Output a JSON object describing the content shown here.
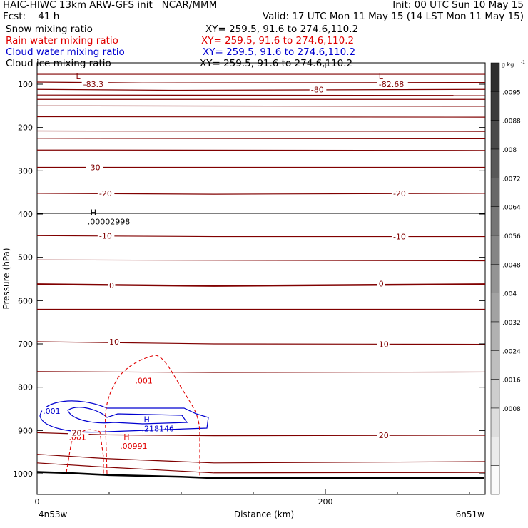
{
  "header": {
    "line1_left": "HAIC-HIWC 13km ARW-GFS init   NCAR/MMM",
    "line1_right": "Init: 00 UTC Sun 10 May 15",
    "line2_left": "Fcst:    41 h",
    "line2_right": "Valid: 17 UTC Mon 11 May 15 (14 LST Mon 11 May 15)"
  },
  "legend": [
    {
      "label": "Snow mixing ratio",
      "xy": "XY= 259.5, 91.6 to 274.6,110.2",
      "color": "#000000"
    },
    {
      "label": "Rain water mixing ratio",
      "xy": "XY= 259.5, 91.6 to 274.6,110.2",
      "color": "#e00000"
    },
    {
      "label": "Cloud water mixing ratio",
      "xy": "XY= 259.5, 91.6 to 274.6,110.2",
      "color": "#0000d0"
    },
    {
      "label": "Cloud ice mixing ratio",
      "xy": "XY= 259.5, 91.6 to 274.6,110.2",
      "color": "#000000"
    }
  ],
  "chart_data": {
    "type": "cross-section",
    "xlabel": "Distance (km)",
    "ylabel": "Pressure (hPa)",
    "xlim": [
      0,
      310
    ],
    "ylim": [
      50,
      1050
    ],
    "x_ticks": [
      0,
      200
    ],
    "y_ticks": [
      100,
      200,
      300,
      400,
      500,
      600,
      700,
      800,
      900,
      1000
    ],
    "x_endpoints": [
      "4n53w",
      "6n51w"
    ],
    "temperature_contour_color": "#800000",
    "temperature_labels": [
      {
        "text": "-83.3",
        "x": 32,
        "p": 100
      },
      {
        "text": "-82.68",
        "x": 237,
        "p": 100
      },
      {
        "text": "-80",
        "x": 190,
        "p": 112
      },
      {
        "text": "-30",
        "x": 35,
        "p": 292
      },
      {
        "text": "-20",
        "x": 43,
        "p": 352
      },
      {
        "text": "-20",
        "x": 247,
        "p": 352
      },
      {
        "text": "-10",
        "x": 43,
        "p": 450
      },
      {
        "text": "-10",
        "x": 247,
        "p": 452
      },
      {
        "text": "0",
        "x": 50,
        "p": 565
      },
      {
        "text": "0",
        "x": 237,
        "p": 561
      },
      {
        "text": "10",
        "x": 50,
        "p": 695
      },
      {
        "text": "10",
        "x": 237,
        "p": 701
      },
      {
        "text": "20",
        "x": 237,
        "p": 911
      }
    ],
    "temperature_extrema": [
      {
        "kind": "L",
        "x": 27,
        "p": 82
      },
      {
        "kind": "L",
        "x": 237,
        "p": 82
      },
      {
        "kind": "H",
        "x": 37,
        "p": 396,
        "value": ".00002998"
      }
    ],
    "terrain_surface_pressure": [
      [
        0,
        996
      ],
      [
        20,
        998
      ],
      [
        50,
        1003
      ],
      [
        100,
        1007
      ],
      [
        122,
        1010
      ],
      [
        200,
        1010
      ],
      [
        310,
        1010
      ]
    ],
    "rain_water": {
      "contour_value": ".001",
      "max_label": "H",
      "max_value": ".00991",
      "max_x": 60,
      "max_p": 914
    },
    "cloud_water": {
      "contour_value": ".001",
      "max_label": "H",
      "max_value": ".218146",
      "max_x": 74,
      "max_p": 874
    },
    "extra_labels": [
      {
        "text": ".001",
        "color": "#0000d0",
        "x": 4,
        "p": 855
      },
      {
        "text": ".001",
        "color": "#e00000",
        "x": 68,
        "p": 785
      },
      {
        "text": ".001",
        "color": "#e00000",
        "x": 22,
        "p": 915
      },
      {
        "text": "20",
        "color": "#800000",
        "x": 24,
        "p": 905
      }
    ],
    "colorbar": {
      "unit": "g kg",
      "unit_exp": "-1",
      "labels": [
        ".0095",
        ".0088",
        ".008",
        ".0072",
        ".0064",
        ".0056",
        ".0048",
        ".004",
        ".0032",
        ".0024",
        ".0016",
        ".0008"
      ]
    }
  }
}
